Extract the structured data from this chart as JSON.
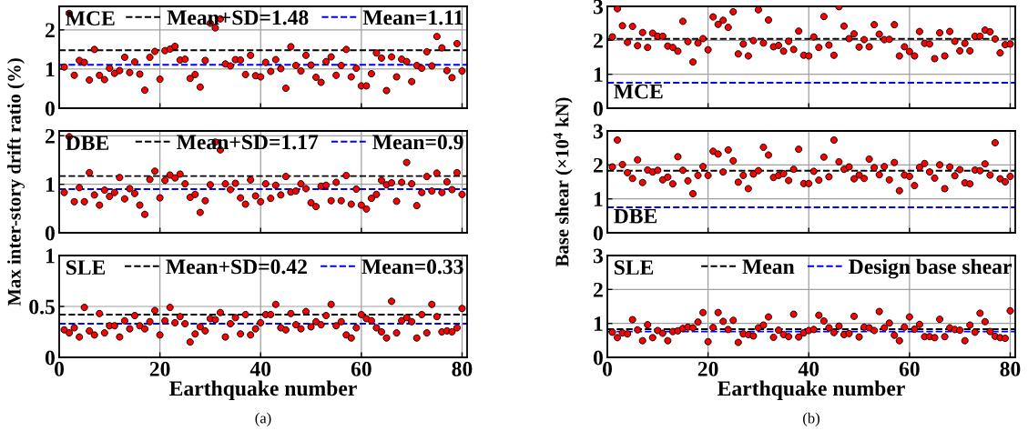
{
  "chart_data": [
    {
      "type": "scatter",
      "annotations": [
        "MCE"
      ],
      "marker": "circle",
      "grid": true,
      "legend": "top right",
      "tick_labels": "y",
      "x": [
        1,
        2,
        3,
        4,
        5,
        6,
        7,
        8,
        9,
        10,
        11,
        12,
        13,
        14,
        15,
        16,
        17,
        18,
        19,
        20,
        21,
        22,
        23,
        24,
        25,
        26,
        27,
        28,
        29,
        30,
        31,
        32,
        33,
        34,
        35,
        36,
        37,
        38,
        39,
        40,
        41,
        42,
        43,
        44,
        45,
        46,
        47,
        48,
        49,
        50,
        51,
        52,
        53,
        54,
        55,
        56,
        57,
        58,
        59,
        60,
        61,
        62,
        63,
        64,
        65,
        66,
        67,
        68,
        69,
        70,
        71,
        72,
        73,
        74,
        75,
        76,
        77,
        78,
        79,
        80
      ],
      "xlim": [
        0,
        81
      ],
      "xticks": [
        0,
        20,
        40,
        60,
        80
      ],
      "ylim": [
        0,
        2.6
      ],
      "yticks": [
        0,
        1,
        2
      ],
      "series": [
        {
          "color": "#ff0000",
          "values": [
            1.05,
            2.42,
            0.84,
            1.22,
            1.17,
            0.72,
            1.5,
            0.84,
            0.73,
            1.02,
            0.89,
            0.96,
            1.3,
            0.91,
            1.18,
            0.87,
            0.46,
            1.3,
            1.45,
            0.74,
            1.47,
            1.51,
            1.58,
            1.23,
            1.25,
            0.76,
            0.86,
            0.54,
            1.22,
            2.17,
            2.05,
            2.28,
            1.13,
            1.08,
            1.24,
            1.23,
            0.86,
            1.35,
            0.83,
            0.8,
            1.17,
            0.94,
            1.24,
            1.01,
            0.51,
            1.57,
            1.09,
            0.95,
            1.35,
            1.1,
            0.79,
            0.66,
            1.19,
            1.31,
            0.84,
            1.09,
            1.5,
            0.8,
            1.02,
            0.57,
            0.57,
            0.88,
            1.41,
            1.28,
            0.45,
            1.31,
            0.8,
            1.25,
            1.19,
            0.68,
            1.09,
            1.02,
            1.44,
            1.08,
            1.83,
            1.54,
            0.96,
            0.78,
            1.65,
            0.95
          ]
        }
      ],
      "ref_lines": [
        {
          "axis": "y",
          "value": 1.48,
          "label": "Mean+SD=1.48",
          "color": "#000000",
          "line_style": "dashed"
        },
        {
          "axis": "y",
          "value": 1.11,
          "label": "Mean=1.11",
          "color": "#0000ff",
          "line_style": "dashed"
        }
      ]
    },
    {
      "type": "scatter",
      "annotations": [
        "DBE"
      ],
      "ylabel": "Max inter-story drift ratio (%)",
      "marker": "circle",
      "grid": true,
      "legend": "top right",
      "tick_labels": "y",
      "x": [
        1,
        2,
        3,
        4,
        5,
        6,
        7,
        8,
        9,
        10,
        11,
        12,
        13,
        14,
        15,
        16,
        17,
        18,
        19,
        20,
        21,
        22,
        23,
        24,
        25,
        26,
        27,
        28,
        29,
        30,
        31,
        32,
        33,
        34,
        35,
        36,
        37,
        38,
        39,
        40,
        41,
        42,
        43,
        44,
        45,
        46,
        47,
        48,
        49,
        50,
        51,
        52,
        53,
        54,
        55,
        56,
        57,
        58,
        59,
        60,
        61,
        62,
        63,
        64,
        65,
        66,
        67,
        68,
        69,
        70,
        71,
        72,
        73,
        74,
        75,
        76,
        77,
        78,
        79,
        80
      ],
      "xlim": [
        0,
        81
      ],
      "xticks": [
        0,
        20,
        40,
        60,
        80
      ],
      "ylim": [
        0,
        2.1
      ],
      "yticks": [
        0,
        1,
        2
      ],
      "series": [
        {
          "color": "#ff0000",
          "values": [
            0.83,
            1.98,
            0.64,
            0.93,
            0.64,
            1.24,
            0.78,
            0.57,
            0.88,
            0.75,
            0.83,
            1.14,
            0.7,
            0.91,
            0.81,
            0.57,
            0.38,
            1.1,
            1.27,
            0.72,
            1.08,
            1.19,
            1.13,
            1.21,
            1.01,
            0.73,
            0.79,
            0.42,
            0.66,
            0.99,
            1.87,
            1.71,
            1.01,
            0.89,
            1.02,
            0.72,
            0.59,
            1.09,
            0.76,
            0.64,
            1.01,
            0.71,
            0.98,
            0.78,
            1.16,
            0.84,
            0.86,
            1.01,
            0.91,
            0.62,
            0.54,
            0.96,
            0.98,
            0.66,
            1.04,
            0.66,
            1.18,
            0.59,
            0.9,
            0.57,
            0.49,
            0.71,
            0.79,
            1.08,
            0.99,
            1.03,
            0.65,
            1.04,
            1.45,
            1.01,
            0.56,
            0.83,
            1.16,
            0.86,
            1.23,
            0.83,
            1.05,
            0.89,
            1.24,
            0.79
          ]
        }
      ],
      "ref_lines": [
        {
          "axis": "y",
          "value": 1.17,
          "label": "Mean+SD=1.17",
          "color": "#000000",
          "line_style": "dashed"
        },
        {
          "axis": "y",
          "value": 0.9,
          "label": "Mean=0.9",
          "color": "#0000ff",
          "line_style": "dashed"
        }
      ]
    },
    {
      "type": "scatter",
      "annotations": [
        "SLE",
        "(a)"
      ],
      "xlabel": "Earthquake number",
      "marker": "circle",
      "grid": true,
      "legend": "top right",
      "x": [
        1,
        2,
        3,
        4,
        5,
        6,
        7,
        8,
        9,
        10,
        11,
        12,
        13,
        14,
        15,
        16,
        17,
        18,
        19,
        20,
        21,
        22,
        23,
        24,
        25,
        26,
        27,
        28,
        29,
        30,
        31,
        32,
        33,
        34,
        35,
        36,
        37,
        38,
        39,
        40,
        41,
        42,
        43,
        44,
        45,
        46,
        47,
        48,
        49,
        50,
        51,
        52,
        53,
        54,
        55,
        56,
        57,
        58,
        59,
        60,
        61,
        62,
        63,
        64,
        65,
        66,
        67,
        68,
        69,
        70,
        71,
        72,
        73,
        74,
        75,
        76,
        77,
        78,
        79,
        80
      ],
      "xlim": [
        0,
        81
      ],
      "xticks": [
        0,
        20,
        40,
        60,
        80
      ],
      "ylim": [
        0,
        1
      ],
      "yticks": [
        0,
        0.5,
        1
      ],
      "series": [
        {
          "color": "#ff0000",
          "values": [
            0.27,
            0.24,
            0.29,
            0.2,
            0.49,
            0.26,
            0.22,
            0.43,
            0.24,
            0.31,
            0.31,
            0.2,
            0.36,
            0.28,
            0.41,
            0.31,
            0.28,
            0.35,
            0.46,
            0.22,
            0.36,
            0.49,
            0.34,
            0.4,
            0.33,
            0.15,
            0.23,
            0.3,
            0.26,
            0.38,
            0.37,
            0.44,
            0.2,
            0.33,
            0.39,
            0.23,
            0.42,
            0.22,
            0.28,
            0.34,
            0.42,
            0.42,
            0.52,
            0.29,
            0.27,
            0.43,
            0.32,
            0.28,
            0.45,
            0.3,
            0.35,
            0.32,
            0.41,
            0.52,
            0.31,
            0.35,
            0.22,
            0.19,
            0.29,
            0.42,
            0.38,
            0.36,
            0.29,
            0.25,
            0.19,
            0.55,
            0.24,
            0.36,
            0.39,
            0.35,
            0.19,
            0.42,
            0.24,
            0.52,
            0.4,
            0.25,
            0.26,
            0.25,
            0.29,
            0.48
          ]
        }
      ],
      "ref_lines": [
        {
          "axis": "y",
          "value": 0.42,
          "label": "Mean+SD=0.42",
          "color": "#000000",
          "line_style": "dashed"
        },
        {
          "axis": "y",
          "value": 0.33,
          "label": "Mean=0.33",
          "color": "#0000ff",
          "line_style": "dashed"
        }
      ]
    },
    {
      "type": "scatter",
      "annotations": [
        "MCE"
      ],
      "marker": "circle",
      "grid": true,
      "tick_labels": "y",
      "x": [
        1,
        2,
        3,
        4,
        5,
        6,
        7,
        8,
        9,
        10,
        11,
        12,
        13,
        14,
        15,
        16,
        17,
        18,
        19,
        20,
        21,
        22,
        23,
        24,
        25,
        26,
        27,
        28,
        29,
        30,
        31,
        32,
        33,
        34,
        35,
        36,
        37,
        38,
        39,
        40,
        41,
        42,
        43,
        44,
        45,
        46,
        47,
        48,
        49,
        50,
        51,
        52,
        53,
        54,
        55,
        56,
        57,
        58,
        59,
        60,
        61,
        62,
        63,
        64,
        65,
        66,
        67,
        68,
        69,
        70,
        71,
        72,
        73,
        74,
        75,
        76,
        77,
        78,
        79,
        80
      ],
      "xlim": [
        0,
        81
      ],
      "xticks": [
        0,
        20,
        40,
        60,
        80
      ],
      "ylim": [
        0,
        3
      ],
      "yticks": [
        0,
        1,
        2,
        3
      ],
      "series": [
        {
          "color": "#ff0000",
          "values": [
            2.1,
            2.93,
            2.43,
            1.94,
            2.41,
            1.84,
            2.23,
            1.79,
            2.21,
            2.12,
            2.12,
            1.83,
            1.79,
            1.68,
            2.56,
            1.96,
            1.36,
            1.92,
            2.05,
            1.72,
            2.69,
            2.47,
            2.59,
            2.38,
            2.84,
            1.6,
            1.89,
            1.54,
            1.99,
            2.9,
            1.92,
            2.6,
            1.81,
            1.85,
            1.68,
            1.97,
            1.73,
            2.27,
            1.56,
            1.54,
            2.1,
            1.79,
            2.7,
            1.86,
            1.56,
            2.99,
            2.42,
            2.05,
            2.19,
            1.8,
            2.02,
            1.81,
            2.46,
            2.18,
            2.02,
            2.03,
            2.46,
            1.54,
            1.81,
            1.67,
            1.54,
            2.26,
            1.91,
            1.89,
            1.46,
            2.22,
            1.54,
            2.26,
            1.97,
            1.69,
            1.91,
            1.69,
            2.12,
            2.12,
            2.3,
            2.25,
            2.04,
            1.63,
            1.87,
            1.89
          ]
        }
      ],
      "ref_lines": [
        {
          "axis": "y",
          "value": 2.04,
          "color": "#000000",
          "line_style": "dashed"
        },
        {
          "axis": "y",
          "value": 0.75,
          "color": "#0000ff",
          "line_style": "dashed"
        }
      ]
    },
    {
      "type": "scatter",
      "annotations": [
        "DBE"
      ],
      "ylabel": "Base shear (×10$^{4}$ kN)",
      "marker": "circle",
      "grid": true,
      "tick_labels": "y",
      "x": [
        1,
        2,
        3,
        4,
        5,
        6,
        7,
        8,
        9,
        10,
        11,
        12,
        13,
        14,
        15,
        16,
        17,
        18,
        19,
        20,
        21,
        22,
        23,
        24,
        25,
        26,
        27,
        28,
        29,
        30,
        31,
        32,
        33,
        34,
        35,
        36,
        37,
        38,
        39,
        40,
        41,
        42,
        43,
        44,
        45,
        46,
        47,
        48,
        49,
        50,
        51,
        52,
        53,
        54,
        55,
        56,
        57,
        58,
        59,
        60,
        61,
        62,
        63,
        64,
        65,
        66,
        67,
        68,
        69,
        70,
        71,
        72,
        73,
        74,
        75,
        76,
        77,
        78,
        79,
        80
      ],
      "xlim": [
        0,
        81
      ],
      "xticks": [
        0,
        20,
        40,
        60,
        80
      ],
      "ylim": [
        0,
        3
      ],
      "yticks": [
        0,
        1,
        2,
        3
      ],
      "series": [
        {
          "color": "#ff0000",
          "values": [
            1.94,
            2.73,
            2.01,
            1.77,
            1.6,
            2.15,
            1.48,
            1.85,
            1.79,
            1.84,
            1.56,
            1.64,
            1.44,
            2.24,
            1.84,
            1.53,
            1.15,
            1.69,
            1.95,
            1.69,
            2.4,
            2.32,
            1.79,
            2.44,
            2.12,
            1.49,
            1.69,
            1.3,
            1.73,
            1.83,
            2.52,
            2.29,
            1.63,
            1.69,
            1.74,
            1.54,
            1.87,
            2.46,
            1.45,
            1.45,
            1.81,
            1.55,
            2.23,
            1.65,
            2.73,
            2.09,
            1.87,
            1.94,
            1.59,
            1.7,
            1.6,
            2.17,
            1.92,
            1.71,
            1.95,
            1.56,
            2.07,
            1.24,
            1.7,
            1.66,
            1.39,
            1.93,
            2.04,
            1.79,
            1.61,
            2.0,
            1.3,
            1.94,
            1.68,
            1.86,
            1.47,
            1.44,
            1.85,
            1.83,
            2.03,
            1.7,
            2.65,
            1.59,
            1.5,
            1.66
          ]
        }
      ],
      "ref_lines": [
        {
          "axis": "y",
          "value": 1.83,
          "color": "#000000",
          "line_style": "dashed"
        },
        {
          "axis": "y",
          "value": 0.75,
          "color": "#0000ff",
          "line_style": "dashed"
        }
      ]
    },
    {
      "type": "scatter",
      "annotations": [
        "SLE",
        "(b)"
      ],
      "xlabel": "Earthquake number",
      "marker": "circle",
      "grid": true,
      "legend": "top right",
      "x": [
        1,
        2,
        3,
        4,
        5,
        6,
        7,
        8,
        9,
        10,
        11,
        12,
        13,
        14,
        15,
        16,
        17,
        18,
        19,
        20,
        21,
        22,
        23,
        24,
        25,
        26,
        27,
        28,
        29,
        30,
        31,
        32,
        33,
        34,
        35,
        36,
        37,
        38,
        39,
        40,
        41,
        42,
        43,
        44,
        45,
        46,
        47,
        48,
        49,
        50,
        51,
        52,
        53,
        54,
        55,
        56,
        57,
        58,
        59,
        60,
        61,
        62,
        63,
        64,
        65,
        66,
        67,
        68,
        69,
        70,
        71,
        72,
        73,
        74,
        75,
        76,
        77,
        78,
        79,
        80
      ],
      "xlim": [
        0,
        81
      ],
      "xticks": [
        0,
        20,
        40,
        60,
        80
      ],
      "ylim": [
        0,
        3
      ],
      "yticks": [
        0,
        1,
        2,
        3
      ],
      "series": [
        {
          "color": "#ff0000",
          "values": [
            0.74,
            0.58,
            0.72,
            0.69,
            1.11,
            0.81,
            0.49,
            0.96,
            0.58,
            0.79,
            0.71,
            0.49,
            0.76,
            0.78,
            0.85,
            0.89,
            0.87,
            1.04,
            1.32,
            0.46,
            0.88,
            1.32,
            1.06,
            0.82,
            1.09,
            0.44,
            0.69,
            0.67,
            0.63,
            0.87,
            0.95,
            1.19,
            0.59,
            0.8,
            0.67,
            0.61,
            1.27,
            0.6,
            0.72,
            0.79,
            0.82,
            1.24,
            1.07,
            0.87,
            0.73,
            0.92,
            0.67,
            0.7,
            1.21,
            0.6,
            0.89,
            0.87,
            0.79,
            1.35,
            0.87,
            1.01,
            0.65,
            0.49,
            0.89,
            1.19,
            0.83,
            0.97,
            0.61,
            0.61,
            0.58,
            1.12,
            0.61,
            0.87,
            0.82,
            0.8,
            0.49,
            0.95,
            0.74,
            1.3,
            1.05,
            0.76,
            0.62,
            0.58,
            0.56,
            1.37
          ]
        }
      ],
      "ref_lines": [
        {
          "axis": "y",
          "value": 0.83,
          "label": "Mean",
          "color": "#000000",
          "line_style": "dashed"
        },
        {
          "axis": "y",
          "value": 0.76,
          "label": "Design base shear",
          "color": "#0000ff",
          "line_style": "dashed"
        }
      ]
    }
  ]
}
